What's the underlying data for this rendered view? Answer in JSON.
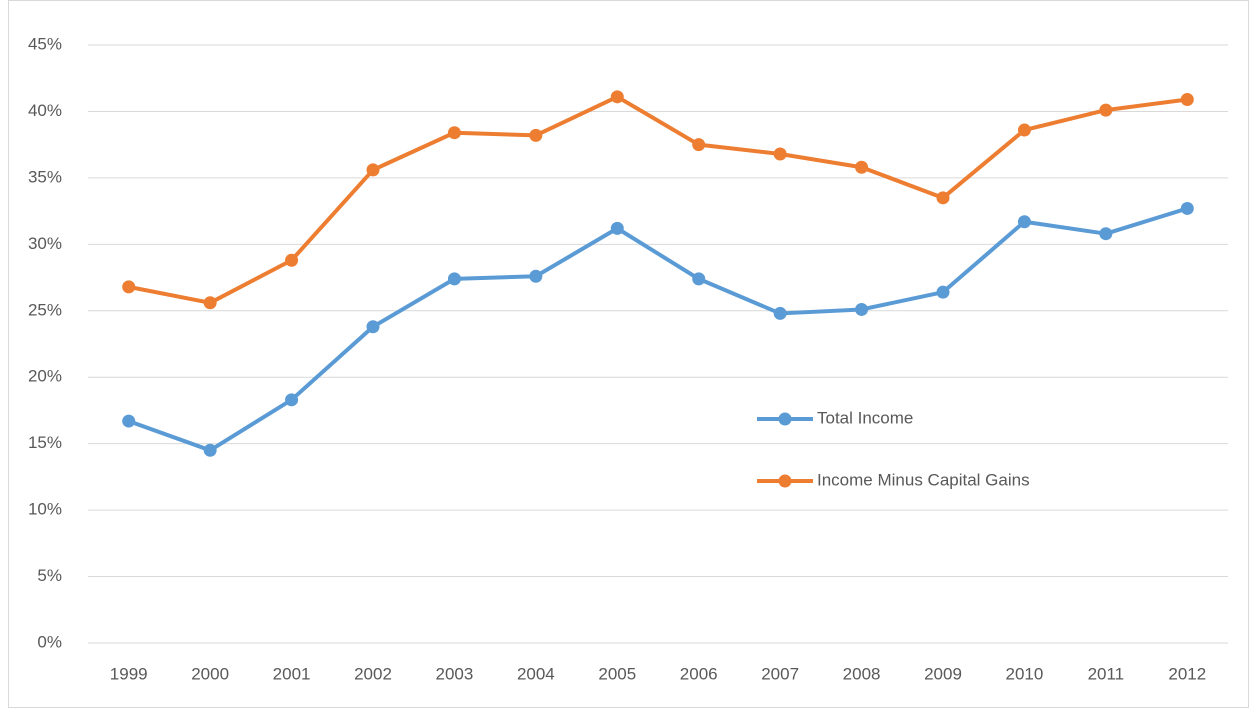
{
  "chart_data": {
    "type": "line",
    "categories": [
      "1999",
      "2000",
      "2001",
      "2002",
      "2003",
      "2004",
      "2005",
      "2006",
      "2007",
      "2008",
      "2009",
      "2010",
      "2011",
      "2012"
    ],
    "series": [
      {
        "name": "Total Income",
        "color": "#5b9bd5",
        "values": [
          16.7,
          14.5,
          18.3,
          23.8,
          27.4,
          27.6,
          31.2,
          27.4,
          24.8,
          25.1,
          26.4,
          31.7,
          30.8,
          32.7
        ]
      },
      {
        "name": "Income Minus Capital Gains",
        "color": "#ed7d31",
        "values": [
          26.8,
          25.6,
          28.8,
          35.6,
          38.4,
          38.2,
          41.1,
          37.5,
          36.8,
          35.8,
          33.5,
          38.6,
          40.1,
          40.9
        ]
      }
    ],
    "ylim": [
      0,
      45
    ],
    "yticks": [
      {
        "value": 0,
        "label": "0%"
      },
      {
        "value": 5,
        "label": "5%"
      },
      {
        "value": 10,
        "label": "10%"
      },
      {
        "value": 15,
        "label": "15%"
      },
      {
        "value": 20,
        "label": "20%"
      },
      {
        "value": 25,
        "label": "25%"
      },
      {
        "value": 30,
        "label": "30%"
      },
      {
        "value": 35,
        "label": "35%"
      },
      {
        "value": 40,
        "label": "40%"
      },
      {
        "value": 45,
        "label": "45%"
      }
    ],
    "grid": true,
    "legend": "right"
  }
}
